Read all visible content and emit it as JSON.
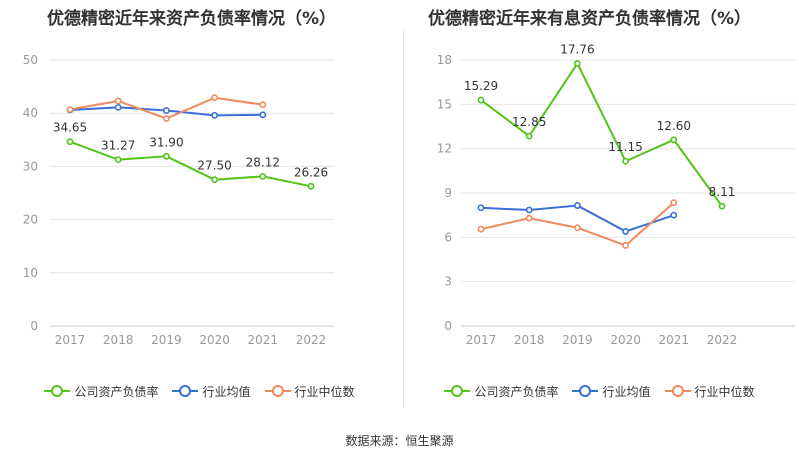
{
  "source_label": "数据来源：恒生聚源",
  "chart_data": [
    {
      "type": "line",
      "title": "优德精密近年来资产负债率情况（%）",
      "xlabel": "",
      "ylabel": "",
      "x": [
        "2017",
        "2018",
        "2019",
        "2020",
        "2021",
        "2022"
      ],
      "ylim": [
        0,
        50
      ],
      "yticks": [
        0,
        10,
        20,
        30,
        40,
        50
      ],
      "grid": true,
      "legend_position": "bottom",
      "series": [
        {
          "name": "公司资产负债率",
          "color": "#52c41a",
          "values": [
            34.65,
            31.27,
            31.9,
            27.5,
            28.12,
            26.26
          ],
          "labels": [
            "34.65",
            "31.27",
            "31.90",
            "27.50",
            "28.12",
            "26.26"
          ],
          "show_labels": true
        },
        {
          "name": "行业均值",
          "color": "#3b6fd8",
          "values": [
            40.6,
            41.1,
            40.5,
            39.6,
            39.7,
            null
          ],
          "show_labels": false
        },
        {
          "name": "行业中位数",
          "color": "#f08a5d",
          "values": [
            40.7,
            42.3,
            39.0,
            42.9,
            41.6,
            null
          ],
          "show_labels": false
        }
      ]
    },
    {
      "type": "line",
      "title": "优德精密近年来有息资产负债率情况（%）",
      "xlabel": "",
      "ylabel": "",
      "x": [
        "2017",
        "2018",
        "2019",
        "2020",
        "2021",
        "2022"
      ],
      "ylim": [
        0,
        18
      ],
      "yticks": [
        0,
        3,
        6,
        9,
        12,
        15,
        18
      ],
      "grid": true,
      "legend_position": "bottom",
      "series": [
        {
          "name": "公司资产负债率",
          "color": "#52c41a",
          "values": [
            15.29,
            12.85,
            17.76,
            11.15,
            12.6,
            8.11
          ],
          "labels": [
            "15.29",
            "12.85",
            "17.76",
            "11.15",
            "12.60",
            "8.11"
          ],
          "show_labels": true
        },
        {
          "name": "行业均值",
          "color": "#3b6fd8",
          "values": [
            8.0,
            7.85,
            8.15,
            6.4,
            7.5,
            null
          ],
          "show_labels": false
        },
        {
          "name": "行业中位数",
          "color": "#f08a5d",
          "values": [
            6.55,
            7.3,
            6.65,
            5.45,
            8.35,
            null
          ],
          "show_labels": false
        }
      ]
    }
  ]
}
